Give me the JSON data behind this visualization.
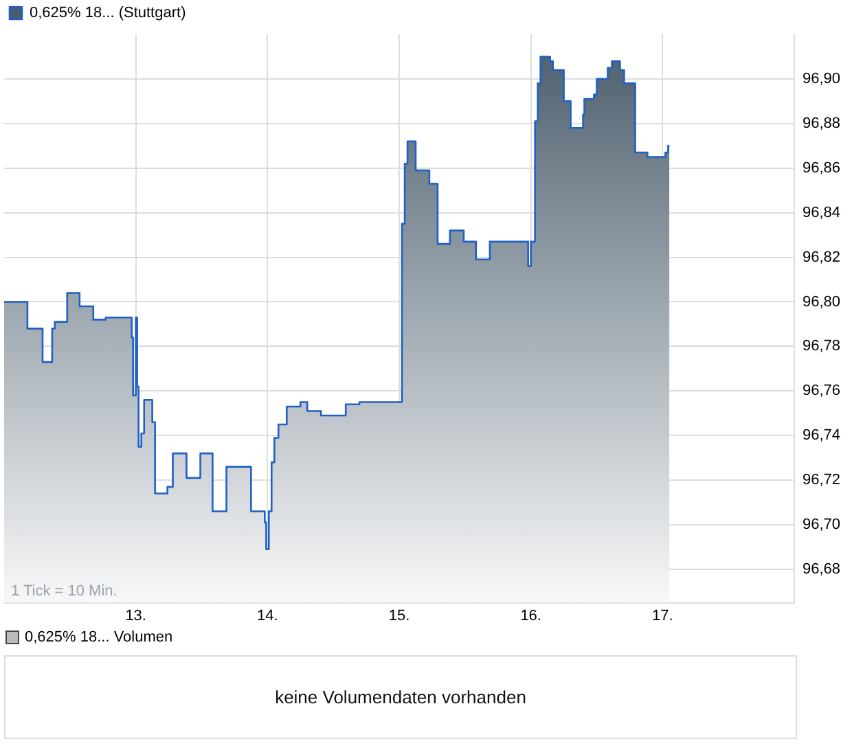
{
  "chart_data": [
    {
      "type": "area",
      "series": [
        {
          "name": "0,625% 18... (Stuttgart)",
          "color": "#1f5fc8",
          "x": [
            12.0,
            12.177,
            12.177,
            12.292,
            12.292,
            12.365,
            12.365,
            12.385,
            12.385,
            12.479,
            12.479,
            12.573,
            12.573,
            12.677,
            12.677,
            12.771,
            12.771,
            12.969,
            12.969,
            12.979,
            12.979,
            13.0,
            13.0,
            13.01,
            13.01,
            13.021,
            13.021,
            13.042,
            13.042,
            13.063,
            13.063,
            13.125,
            13.125,
            13.146,
            13.146,
            13.24,
            13.24,
            13.281,
            13.281,
            13.385,
            13.385,
            13.49,
            13.49,
            13.583,
            13.583,
            13.688,
            13.688,
            13.875,
            13.875,
            13.979,
            13.979,
            13.99,
            13.99,
            14.01,
            14.01,
            14.031,
            14.031,
            14.052,
            14.052,
            14.083,
            14.083,
            14.146,
            14.146,
            14.25,
            14.25,
            14.302,
            14.302,
            14.406,
            14.406,
            14.594,
            14.594,
            14.698,
            14.698,
            15.021,
            15.021,
            15.042,
            15.042,
            15.063,
            15.063,
            15.125,
            15.125,
            15.229,
            15.229,
            15.292,
            15.292,
            15.385,
            15.385,
            15.49,
            15.49,
            15.583,
            15.583,
            15.688,
            15.688,
            15.979,
            15.979,
            16.0,
            16.0,
            16.031,
            16.031,
            16.052,
            16.052,
            16.073,
            16.073,
            16.146,
            16.146,
            16.167,
            16.167,
            16.25,
            16.25,
            16.302,
            16.302,
            16.396,
            16.396,
            16.406,
            16.406,
            16.479,
            16.479,
            16.5,
            16.5,
            16.583,
            16.583,
            16.615,
            16.615,
            16.677,
            16.677,
            16.708,
            16.708,
            16.792,
            16.792,
            16.885,
            16.885,
            17.021,
            17.021,
            17.042,
            17.042,
            17.052
          ],
          "values": [
            96.8,
            96.8,
            96.788,
            96.788,
            96.773,
            96.773,
            96.788,
            96.788,
            96.791,
            96.791,
            96.804,
            96.804,
            96.798,
            96.798,
            96.792,
            96.792,
            96.793,
            96.793,
            96.784,
            96.784,
            96.758,
            96.758,
            96.793,
            96.793,
            96.762,
            96.762,
            96.735,
            96.735,
            96.741,
            96.741,
            96.756,
            96.756,
            96.746,
            96.746,
            96.714,
            96.714,
            96.717,
            96.717,
            96.732,
            96.732,
            96.721,
            96.721,
            96.732,
            96.732,
            96.706,
            96.706,
            96.726,
            96.726,
            96.706,
            96.706,
            96.701,
            96.701,
            96.689,
            96.689,
            96.706,
            96.706,
            96.728,
            96.728,
            96.739,
            96.739,
            96.745,
            96.745,
            96.753,
            96.753,
            96.755,
            96.755,
            96.751,
            96.751,
            96.749,
            96.749,
            96.754,
            96.754,
            96.755,
            96.755,
            96.835,
            96.835,
            96.862,
            96.862,
            96.872,
            96.872,
            96.859,
            96.859,
            96.853,
            96.853,
            96.826,
            96.826,
            96.832,
            96.832,
            96.827,
            96.827,
            96.819,
            96.819,
            96.827,
            96.827,
            96.816,
            96.816,
            96.827,
            96.827,
            96.881,
            96.881,
            96.898,
            96.898,
            96.91,
            96.91,
            96.908,
            96.908,
            96.904,
            96.904,
            96.89,
            96.89,
            96.878,
            96.878,
            96.884,
            96.884,
            96.891,
            96.891,
            96.893,
            96.893,
            96.9,
            96.9,
            96.905,
            96.905,
            96.908,
            96.908,
            96.904,
            96.904,
            96.898,
            96.898,
            96.867,
            96.867,
            96.865,
            96.865,
            96.867,
            96.867,
            96.87,
            96.87
          ]
        }
      ],
      "xlim": [
        12,
        18
      ],
      "xticks": [
        {
          "value": 13,
          "label": "13."
        },
        {
          "value": 14,
          "label": "14."
        },
        {
          "value": 15,
          "label": "15."
        },
        {
          "value": 16,
          "label": "16."
        },
        {
          "value": 17,
          "label": "17."
        }
      ],
      "ylim": [
        96.665,
        96.92
      ],
      "yticks": [
        {
          "value": 96.68,
          "label": "96,68"
        },
        {
          "value": 96.7,
          "label": "96,70"
        },
        {
          "value": 96.72,
          "label": "96,72"
        },
        {
          "value": 96.74,
          "label": "96,74"
        },
        {
          "value": 96.76,
          "label": "96,76"
        },
        {
          "value": 96.78,
          "label": "96,78"
        },
        {
          "value": 96.8,
          "label": "96,80"
        },
        {
          "value": 96.82,
          "label": "96,82"
        },
        {
          "value": 96.84,
          "label": "96,84"
        },
        {
          "value": 96.86,
          "label": "96,86"
        },
        {
          "value": 96.88,
          "label": "96,88"
        },
        {
          "value": 96.9,
          "label": "96,90"
        }
      ],
      "grid": true,
      "legend": "top left",
      "marker": "none",
      "line_style": "solid",
      "annotations": [
        "1 Tick = 10 Min."
      ]
    },
    {
      "type": "other",
      "title": "0,625% 18... Volumen",
      "annotations": [
        "keine Volumendaten vorhanden"
      ]
    }
  ]
}
